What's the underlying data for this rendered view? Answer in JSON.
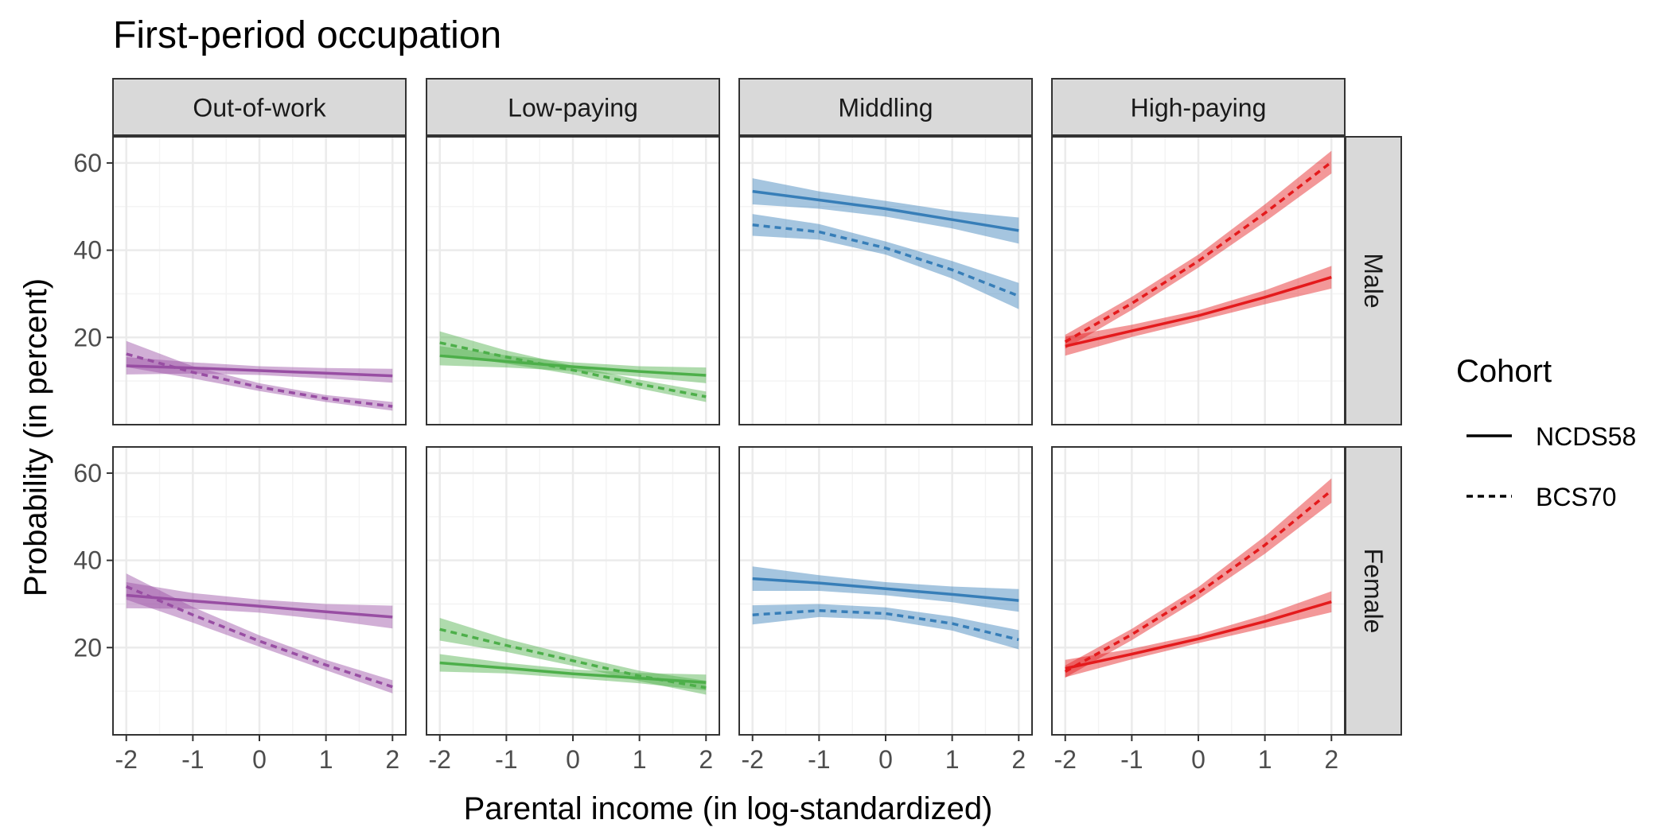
{
  "chart_data": {
    "type": "line",
    "title": "First-period occupation",
    "xlabel": "Parental income (in log-standardized)",
    "ylabel": "Probability (in percent)",
    "xlim": [
      -2.2,
      2.2
    ],
    "ylim": [
      0,
      66
    ],
    "xticks": [
      -2,
      -1,
      0,
      1,
      2
    ],
    "xtick_labels": [
      "-2",
      "-1",
      "0",
      "1",
      "2"
    ],
    "yticks": [
      20,
      40,
      60
    ],
    "ytick_labels": [
      "20",
      "40",
      "60"
    ],
    "grid": true,
    "legend": {
      "title": "Cohort",
      "position": "right",
      "entries": [
        {
          "label": "NCDS58",
          "linetype": "solid"
        },
        {
          "label": "BCS70",
          "linetype": "dashed"
        }
      ]
    },
    "columns": [
      {
        "label": "Out-of-work",
        "color": "#984EA3"
      },
      {
        "label": "Low-paying",
        "color": "#4DAF4A"
      },
      {
        "label": "Middling",
        "color": "#377EB8"
      },
      {
        "label": "High-paying",
        "color": "#E41A1C"
      }
    ],
    "rows": [
      {
        "label": "Male"
      },
      {
        "label": "Female"
      }
    ],
    "x": [
      -2,
      -1,
      0,
      1,
      2
    ],
    "panels": [
      {
        "row": "Male",
        "column": "Out-of-work",
        "series": [
          {
            "name": "NCDS58",
            "values": [
              13.5,
              13.0,
              12.4,
              11.8,
              11.2
            ],
            "ci_halfwidth": [
              2.0,
              1.3,
              1.0,
              1.2,
              1.6
            ]
          },
          {
            "name": "BCS70",
            "values": [
              16.2,
              12.0,
              8.6,
              6.0,
              4.2
            ],
            "ci_halfwidth": [
              3.0,
              1.4,
              0.9,
              0.8,
              1.0
            ]
          }
        ]
      },
      {
        "row": "Male",
        "column": "Low-paying",
        "series": [
          {
            "name": "NCDS58",
            "values": [
              15.8,
              14.5,
              13.3,
              12.2,
              11.3
            ],
            "ci_halfwidth": [
              2.2,
              1.4,
              1.0,
              1.2,
              1.8
            ]
          },
          {
            "name": "BCS70",
            "values": [
              18.8,
              15.5,
              12.5,
              9.3,
              6.4
            ],
            "ci_halfwidth": [
              2.6,
              1.5,
              1.0,
              1.0,
              1.2
            ]
          }
        ]
      },
      {
        "row": "Male",
        "column": "Middling",
        "series": [
          {
            "name": "NCDS58",
            "values": [
              53.5,
              51.5,
              49.5,
              47.0,
              44.5
            ],
            "ci_halfwidth": [
              3.0,
              2.0,
              1.8,
              2.0,
              3.0
            ]
          },
          {
            "name": "BCS70",
            "values": [
              45.8,
              44.2,
              40.5,
              35.5,
              29.5
            ],
            "ci_halfwidth": [
              2.5,
              1.8,
              1.5,
              2.0,
              3.0
            ]
          }
        ]
      },
      {
        "row": "Male",
        "column": "High-paying",
        "series": [
          {
            "name": "NCDS58",
            "values": [
              18.0,
              21.5,
              25.0,
              29.2,
              33.8
            ],
            "ci_halfwidth": [
              2.2,
              1.4,
              1.2,
              1.6,
              2.6
            ]
          },
          {
            "name": "BCS70",
            "values": [
              19.0,
              27.8,
              37.5,
              48.5,
              60.2
            ],
            "ci_halfwidth": [
              1.6,
              1.5,
              1.5,
              2.0,
              2.6
            ]
          }
        ]
      },
      {
        "row": "Female",
        "column": "Out-of-work",
        "series": [
          {
            "name": "NCDS58",
            "values": [
              32.0,
              30.7,
              29.5,
              28.2,
              27.0
            ],
            "ci_halfwidth": [
              3.0,
              1.8,
              1.5,
              1.8,
              2.6
            ]
          },
          {
            "name": "BCS70",
            "values": [
              34.0,
              27.5,
              21.5,
              16.0,
              11.0
            ],
            "ci_halfwidth": [
              3.0,
              1.8,
              1.3,
              1.2,
              1.5
            ]
          }
        ]
      },
      {
        "row": "Female",
        "column": "Low-paying",
        "series": [
          {
            "name": "NCDS58",
            "values": [
              16.5,
              15.3,
              14.0,
              13.0,
              12.0
            ],
            "ci_halfwidth": [
              2.0,
              1.2,
              1.0,
              1.2,
              1.8
            ]
          },
          {
            "name": "BCS70",
            "values": [
              24.2,
              20.5,
              17.0,
              13.5,
              10.8
            ],
            "ci_halfwidth": [
              2.6,
              1.5,
              1.2,
              1.2,
              1.6
            ]
          }
        ]
      },
      {
        "row": "Female",
        "column": "Middling",
        "series": [
          {
            "name": "NCDS58",
            "values": [
              35.8,
              34.8,
              33.5,
              32.2,
              30.8
            ],
            "ci_halfwidth": [
              2.8,
              1.8,
              1.5,
              1.8,
              2.6
            ]
          },
          {
            "name": "BCS70",
            "values": [
              27.5,
              28.5,
              27.8,
              25.5,
              21.8
            ],
            "ci_halfwidth": [
              2.2,
              1.5,
              1.4,
              1.6,
              2.2
            ]
          }
        ]
      },
      {
        "row": "Female",
        "column": "High-paying",
        "series": [
          {
            "name": "NCDS58",
            "values": [
              15.2,
              18.5,
              22.0,
              26.0,
              30.5
            ],
            "ci_halfwidth": [
              2.0,
              1.2,
              1.0,
              1.5,
              2.4
            ]
          },
          {
            "name": "BCS70",
            "values": [
              14.5,
              23.0,
              32.5,
              43.5,
              56.0
            ],
            "ci_halfwidth": [
              1.4,
              1.3,
              1.4,
              2.0,
              2.8
            ]
          }
        ]
      }
    ]
  }
}
